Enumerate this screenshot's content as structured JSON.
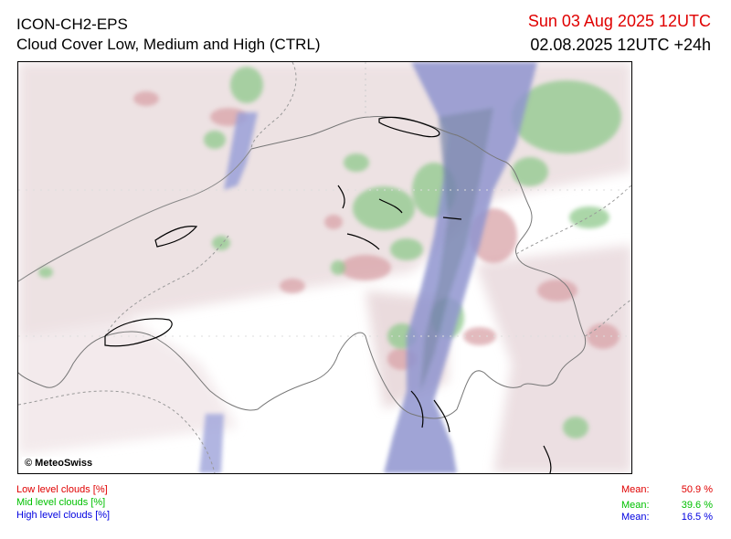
{
  "header": {
    "model_name": "ICON-CH2-EPS",
    "product_name": "Cloud Cover Low, Medium and High (CTRL)",
    "valid_time": "Sun 03 Aug 2025 12UTC",
    "run_time": "02.08.2025 12UTC +24h"
  },
  "map": {
    "copyright": "© MeteoSwiss",
    "background_color": "#ffffff",
    "border_color": "#333333",
    "lake_color": "#000000"
  },
  "legend": {
    "low": {
      "label": "Low level clouds [%]",
      "color": "#e00000"
    },
    "mid": {
      "label": "Mid level clouds [%]",
      "color": "#00c000"
    },
    "high": {
      "label": "High level clouds [%]",
      "color": "#0000e0"
    }
  },
  "stats": {
    "low": {
      "label": "Mean:",
      "value": "50.9 %",
      "color": "#e00000"
    },
    "mid": {
      "label": "Mean:",
      "value": "39.6 %",
      "color": "#00c000"
    },
    "high": {
      "label": "Mean:",
      "value": "16.5 %",
      "color": "#0000e0"
    }
  }
}
